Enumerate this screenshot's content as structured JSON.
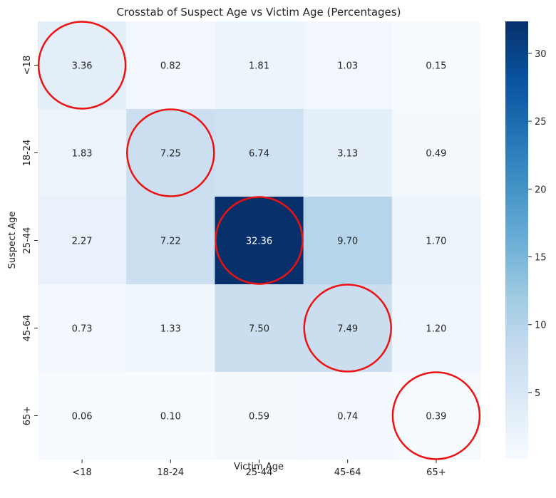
{
  "chart_data": {
    "type": "heatmap",
    "title": "Crosstab of Suspect Age vs Victim Age (Percentages)",
    "xlabel": "Victim Age",
    "ylabel": "Suspect Age",
    "x_categories": [
      "<18",
      "18-24",
      "25-44",
      "45-64",
      "65+"
    ],
    "y_categories": [
      "<18",
      "18-24",
      "25-44",
      "45-64",
      "65+"
    ],
    "values": [
      [
        3.36,
        0.82,
        1.81,
        1.03,
        0.15
      ],
      [
        1.83,
        7.25,
        6.74,
        3.13,
        0.49
      ],
      [
        2.27,
        7.22,
        32.36,
        9.7,
        1.7
      ],
      [
        0.73,
        1.33,
        7.5,
        7.49,
        1.2
      ],
      [
        0.06,
        0.1,
        0.59,
        0.74,
        0.39
      ]
    ],
    "value_labels": [
      [
        "3.36",
        "0.82",
        "1.81",
        "1.03",
        "0.15"
      ],
      [
        "1.83",
        "7.25",
        "6.74",
        "3.13",
        "0.49"
      ],
      [
        "2.27",
        "7.22",
        "32.36",
        "9.70",
        "1.70"
      ],
      [
        "0.73",
        "1.33",
        "7.50",
        "7.49",
        "1.20"
      ],
      [
        "0.06",
        "0.10",
        "0.59",
        "0.74",
        "0.39"
      ]
    ],
    "colormap": "Blues",
    "colorbar": {
      "vmin": 0.06,
      "vmax": 32.36,
      "ticks": [
        5,
        10,
        15,
        20,
        25,
        30
      ],
      "tick_labels": [
        "5",
        "10",
        "15",
        "20",
        "25",
        "30"
      ]
    },
    "annotations": {
      "diagonal_circles": true,
      "circle_color": "#ee1111"
    },
    "grid": false
  }
}
